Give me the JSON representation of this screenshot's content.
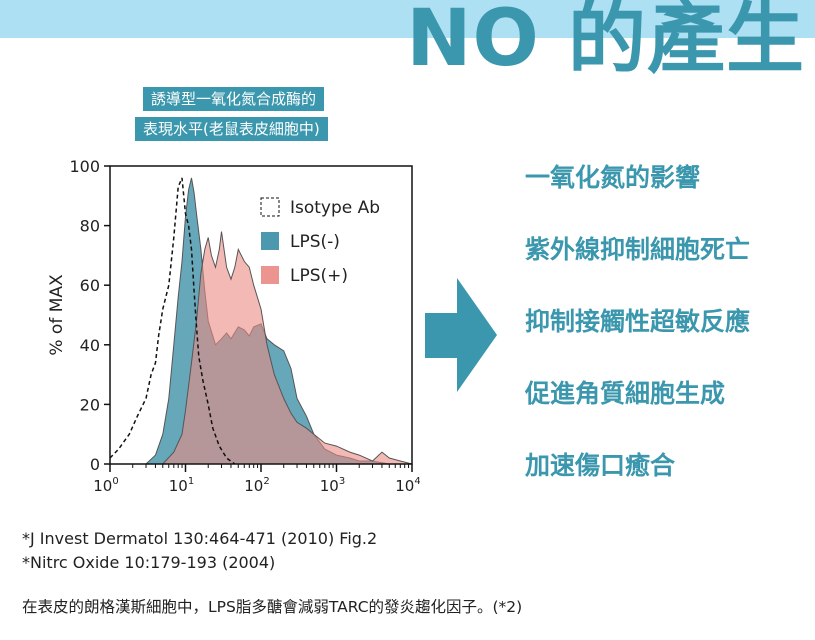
{
  "header": {
    "title": "NO 的產生",
    "band_color": "#aee0f3",
    "accent": "#3b97ad"
  },
  "panel_label": {
    "line1": "誘導型一氧化氮合成酶的",
    "line2": "表現水平(老鼠表皮細胞中)"
  },
  "chart_data": {
    "type": "area",
    "ylabel": "% of MAX",
    "xscale": "log",
    "xlim": [
      1,
      10000
    ],
    "ylim": [
      0,
      100
    ],
    "y_ticks": [
      0,
      20,
      40,
      60,
      80,
      100
    ],
    "x_ticks": [
      {
        "base": "10",
        "exp": "0"
      },
      {
        "base": "10",
        "exp": "1"
      },
      {
        "base": "10",
        "exp": "2"
      },
      {
        "base": "10",
        "exp": "3"
      },
      {
        "base": "10",
        "exp": "4"
      }
    ],
    "legend_position": "top-right",
    "series": [
      {
        "name": "Isotype Ab",
        "style": "dashed-outline",
        "color": "#111111",
        "x": [
          1,
          1.3,
          1.8,
          2.3,
          3,
          3.5,
          4,
          4.4,
          5,
          6,
          7,
          8,
          9,
          10,
          11,
          12,
          13,
          14,
          15,
          17,
          20,
          23,
          28,
          35,
          45
        ],
        "y": [
          2,
          5,
          10,
          16,
          22,
          30,
          34,
          43,
          52,
          60,
          76,
          93,
          96,
          84,
          80,
          72,
          58,
          46,
          36,
          28,
          20,
          12,
          6,
          2,
          0
        ]
      },
      {
        "name": "LPS(-)",
        "style": "filled",
        "color": "#4c98ae",
        "x": [
          3,
          4,
          5,
          6,
          7,
          8,
          9,
          10,
          11,
          12,
          13,
          14,
          16,
          18,
          20,
          25,
          30,
          35,
          40,
          50,
          60,
          70,
          80,
          100,
          120,
          150,
          200,
          250,
          300,
          400,
          500,
          700,
          1000,
          1500,
          2000,
          3000,
          5000,
          10000
        ],
        "y": [
          0,
          3,
          10,
          22,
          40,
          56,
          68,
          83,
          92,
          96,
          91,
          84,
          72,
          58,
          48,
          40,
          42,
          44,
          42,
          46,
          45,
          43,
          46,
          47,
          42,
          40,
          38,
          32,
          22,
          16,
          10,
          5,
          3,
          2,
          1,
          1,
          0,
          0
        ]
      },
      {
        "name": "LPS(+)",
        "style": "filled",
        "color": "#ea8a84",
        "x": [
          5,
          7,
          9,
          10,
          12,
          14,
          16,
          18,
          20,
          22,
          25,
          28,
          30,
          35,
          40,
          45,
          50,
          60,
          70,
          80,
          100,
          120,
          150,
          200,
          250,
          300,
          400,
          500,
          700,
          1000,
          1500,
          2000,
          3000,
          4000,
          5000,
          7000,
          10000
        ],
        "y": [
          0,
          4,
          10,
          18,
          34,
          48,
          64,
          72,
          76,
          70,
          66,
          72,
          78,
          66,
          62,
          66,
          72,
          68,
          66,
          60,
          52,
          40,
          30,
          22,
          17,
          14,
          12,
          10,
          7,
          6,
          4,
          3,
          1,
          4,
          2,
          1,
          0
        ]
      }
    ]
  },
  "arrow": {
    "color": "#3b97ad",
    "icon": "right-arrow-icon"
  },
  "effects": [
    "一氧化氮的影響",
    "紫外線抑制細胞死亡",
    "抑制接觸性超敏反應",
    "促進角質細胞生成",
    "加速傷口癒合"
  ],
  "references": [
    "*J Invest Dermatol 130:464-471 (2010) Fig.2",
    "*Nitrc Oxide 10:179-193 (2004)"
  ],
  "footnote": "在表皮的朗格漢斯細胞中，LPS脂多醣會減弱TARC的發炎趨化因子。(*2)"
}
